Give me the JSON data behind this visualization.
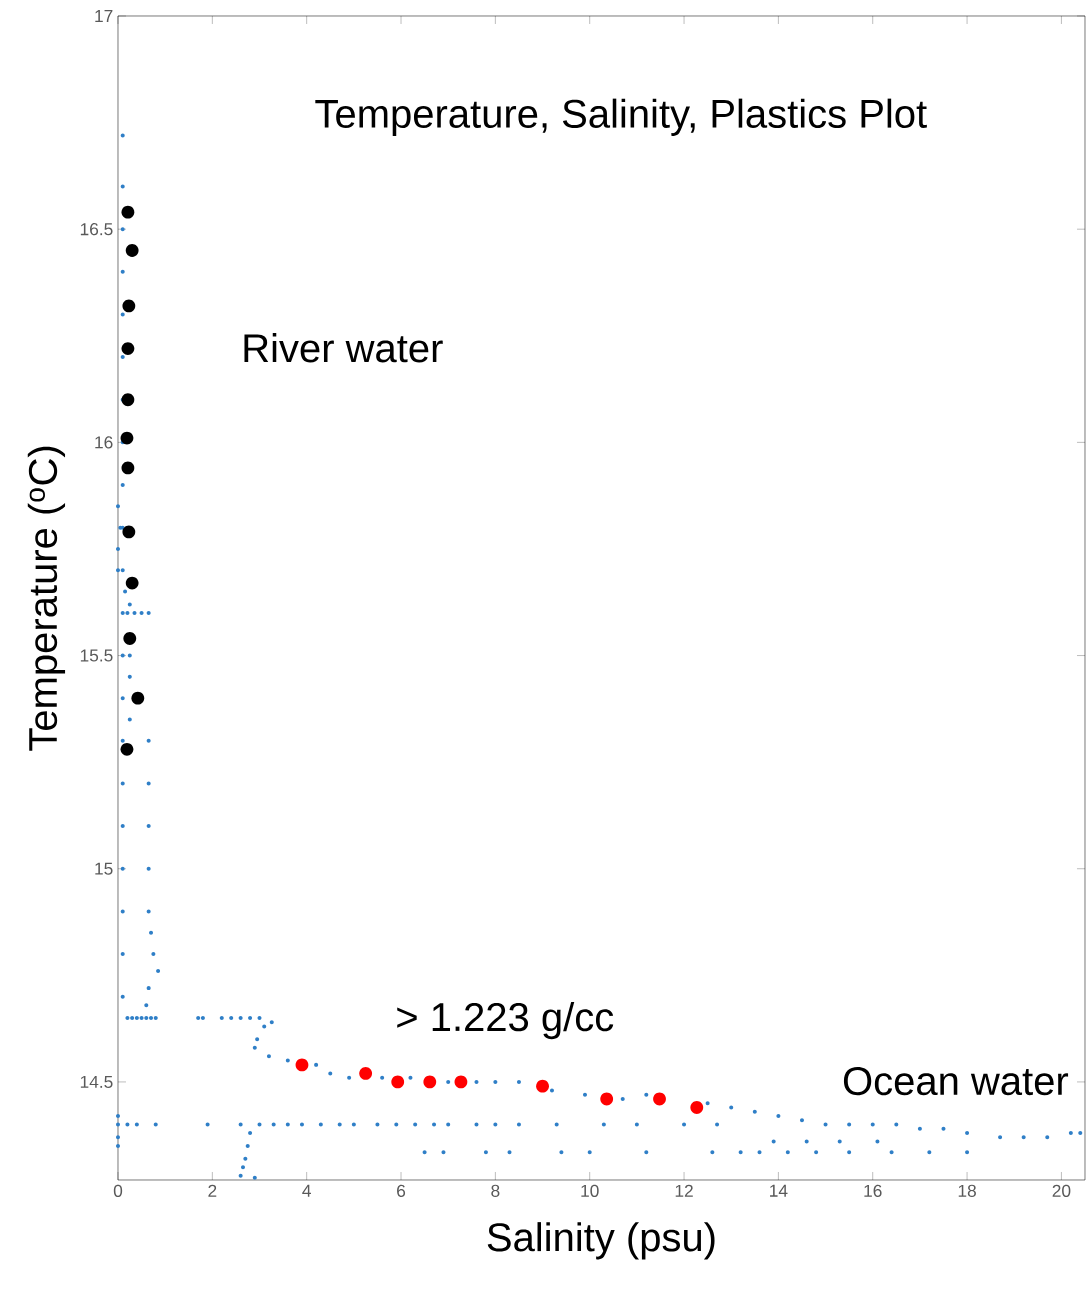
{
  "chart_data": {
    "type": "scatter",
    "title": "Temperature, Salinity, Plastics Plot",
    "xlabel": "Salinity (psu)",
    "ylabel": "Temperature ($^{o}$C)",
    "xlim": [
      0,
      20.5
    ],
    "ylim": [
      14.27,
      17
    ],
    "xticks": [
      0,
      2,
      4,
      6,
      8,
      10,
      12,
      14,
      16,
      18,
      20
    ],
    "yticks": [
      14.5,
      15,
      15.5,
      16,
      16.5,
      17
    ],
    "grid": false,
    "annotations": [
      "River water",
      "> 1.223 g/cc",
      "Ocean water"
    ],
    "series": [
      {
        "color": "#2f7fc7",
        "x": [
          0.1,
          0.1,
          0.1,
          0.1,
          0.1,
          0.1,
          0.1,
          0.1,
          0.1,
          0.1,
          0.1,
          0.1,
          0.1,
          0.1,
          0.1,
          0.1,
          0.1,
          0.1,
          0.1,
          0.1,
          0.1,
          0.0,
          0.0,
          0.0,
          0.05,
          0.15,
          0.2,
          0.35,
          0.5,
          0.65,
          0.25,
          0.65,
          0.65,
          0.65,
          0.65,
          0.65,
          0.7,
          0.75,
          0.85,
          0.65,
          0.6,
          0.25,
          0.25,
          0.25,
          0.2,
          0.3,
          0.4,
          0.5,
          0.6,
          0.7,
          0.8,
          1.7,
          1.8,
          2.2,
          2.4,
          2.6,
          2.8,
          3.0,
          3.1,
          3.26,
          2.95,
          2.9,
          3.2,
          3.6,
          4.2,
          4.5,
          4.9,
          5.6,
          6.2,
          7.0,
          7.6,
          8.0,
          8.5,
          9.2,
          9.9,
          10.7,
          11.2,
          12.5,
          13.0,
          13.5,
          14.0,
          14.5,
          15.0,
          15.5,
          16.0,
          16.5,
          17.0,
          17.5,
          18.0,
          18.7,
          19.2,
          19.7,
          20.2,
          20.4,
          0.0,
          0.2,
          0.4,
          0.8,
          1.9,
          2.6,
          3.0,
          3.3,
          3.6,
          3.9,
          4.3,
          4.7,
          5.0,
          5.5,
          5.9,
          6.3,
          6.7,
          7.0,
          7.6,
          8.0,
          8.5,
          9.3,
          10.3,
          11.0,
          12.0,
          12.7,
          6.5,
          6.9,
          7.8,
          8.3,
          9.4,
          10.0,
          11.2,
          12.6,
          13.2,
          13.6,
          14.2,
          14.8,
          15.5,
          16.4,
          17.2,
          18.0,
          13.9,
          14.6,
          15.3,
          16.1,
          2.8,
          2.75,
          2.7,
          2.65,
          2.6,
          2.9,
          0.0,
          0.0,
          0.0
        ],
        "values": [
          16.72,
          16.6,
          16.5,
          16.4,
          16.3,
          16.2,
          16.1,
          16.0,
          15.9,
          15.8,
          15.7,
          15.6,
          15.5,
          15.4,
          15.3,
          15.2,
          15.1,
          15.0,
          14.9,
          14.8,
          14.7,
          15.85,
          15.75,
          15.7,
          15.8,
          15.65,
          15.6,
          15.6,
          15.6,
          15.6,
          15.62,
          15.3,
          15.2,
          15.1,
          15.0,
          14.9,
          14.85,
          14.8,
          14.76,
          14.72,
          14.68,
          15.5,
          15.45,
          15.35,
          14.65,
          14.65,
          14.65,
          14.65,
          14.65,
          14.65,
          14.65,
          14.65,
          14.65,
          14.65,
          14.65,
          14.65,
          14.65,
          14.65,
          14.63,
          14.64,
          14.6,
          14.58,
          14.56,
          14.55,
          14.54,
          14.52,
          14.51,
          14.51,
          14.51,
          14.5,
          14.5,
          14.5,
          14.5,
          14.48,
          14.47,
          14.46,
          14.47,
          14.45,
          14.44,
          14.43,
          14.42,
          14.41,
          14.4,
          14.4,
          14.4,
          14.4,
          14.39,
          14.39,
          14.38,
          14.37,
          14.37,
          14.37,
          14.38,
          14.38,
          14.4,
          14.4,
          14.4,
          14.4,
          14.4,
          14.4,
          14.4,
          14.4,
          14.4,
          14.4,
          14.4,
          14.4,
          14.4,
          14.4,
          14.4,
          14.4,
          14.4,
          14.4,
          14.4,
          14.4,
          14.4,
          14.4,
          14.4,
          14.4,
          14.4,
          14.4,
          14.335,
          14.335,
          14.335,
          14.335,
          14.335,
          14.335,
          14.335,
          14.335,
          14.335,
          14.335,
          14.335,
          14.335,
          14.335,
          14.335,
          14.335,
          14.335,
          14.36,
          14.36,
          14.36,
          14.36,
          14.38,
          14.35,
          14.32,
          14.3,
          14.28,
          14.275,
          14.42,
          14.37,
          14.35
        ]
      },
      {
        "color": "#000000",
        "x": [
          0.21,
          0.3,
          0.23,
          0.21,
          0.21,
          0.19,
          0.21,
          0.23,
          0.3,
          0.25,
          0.42,
          0.19
        ],
        "values": [
          16.54,
          16.45,
          16.32,
          16.22,
          16.1,
          16.01,
          15.94,
          15.79,
          15.67,
          15.54,
          15.4,
          15.28
        ]
      },
      {
        "color": "#ff0000",
        "x": [
          3.9,
          5.25,
          5.93,
          6.61,
          7.27,
          9.0,
          10.36,
          11.48,
          12.27
        ],
        "values": [
          14.54,
          14.52,
          14.5,
          14.5,
          14.5,
          14.49,
          14.46,
          14.46,
          14.44
        ]
      }
    ]
  }
}
